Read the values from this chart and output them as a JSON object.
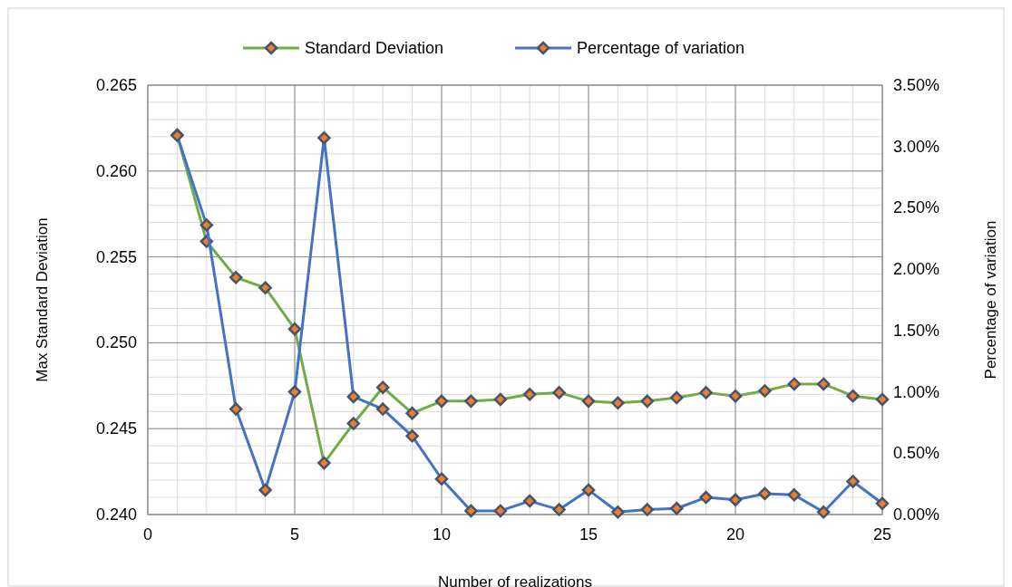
{
  "chart_data": {
    "type": "line",
    "xlabel": "Number of realizations",
    "ylabel": "Max Standard Deviation",
    "y2label": "Percentage of variation",
    "x": [
      1,
      2,
      3,
      4,
      5,
      6,
      7,
      8,
      9,
      10,
      11,
      12,
      13,
      14,
      15,
      16,
      17,
      18,
      19,
      20,
      21,
      22,
      23,
      24,
      25
    ],
    "series": [
      {
        "name": "Standard Deviation",
        "color": "#70ad47",
        "values": [
          0.2621,
          0.2559,
          0.2538,
          0.2532,
          0.2508,
          0.243,
          0.2453,
          0.2474,
          0.2459,
          0.2466,
          0.2466,
          0.2467,
          0.247,
          0.2471,
          0.2466,
          0.2465,
          0.2466,
          0.2468,
          0.2471,
          0.2469,
          0.2472,
          0.2476,
          0.2476,
          0.2469,
          0.2467
        ]
      },
      {
        "name": "Percentage of variation",
        "color": "#4472c4",
        "axis": "y2",
        "values": [
          3.09,
          2.36,
          0.86,
          0.2,
          1.0,
          3.07,
          0.96,
          0.86,
          0.64,
          0.29,
          0.03,
          0.03,
          0.11,
          0.04,
          0.2,
          0.02,
          0.04,
          0.05,
          0.14,
          0.12,
          0.17,
          0.16,
          0.02,
          0.27,
          0.09
        ]
      }
    ],
    "xlim": [
      0,
      25
    ],
    "xticks": [
      0,
      5,
      10,
      15,
      20,
      25
    ],
    "ylim": [
      0.24,
      0.265
    ],
    "yticks": [
      {
        "value": 0.24,
        "label": "0.240"
      },
      {
        "value": 0.245,
        "label": "0.245"
      },
      {
        "value": 0.25,
        "label": "0.250"
      },
      {
        "value": 0.255,
        "label": "0.255"
      },
      {
        "value": 0.26,
        "label": "0.260"
      },
      {
        "value": 0.265,
        "label": "0.265"
      }
    ],
    "y2lim": [
      0,
      3.5
    ],
    "y2ticks": [
      {
        "value": 0,
        "label": "0.00%"
      },
      {
        "value": 0.5,
        "label": "0.50%"
      },
      {
        "value": 1,
        "label": "1.00%"
      },
      {
        "value": 1.5,
        "label": "1.50%"
      },
      {
        "value": 2,
        "label": "2.00%"
      },
      {
        "value": 2.5,
        "label": "2.50%"
      },
      {
        "value": 3,
        "label": "3.00%"
      },
      {
        "value": 3.5,
        "label": "3.50%"
      }
    ],
    "grid": true,
    "legend": "top",
    "marker": "diamond",
    "line_style": "solid"
  }
}
